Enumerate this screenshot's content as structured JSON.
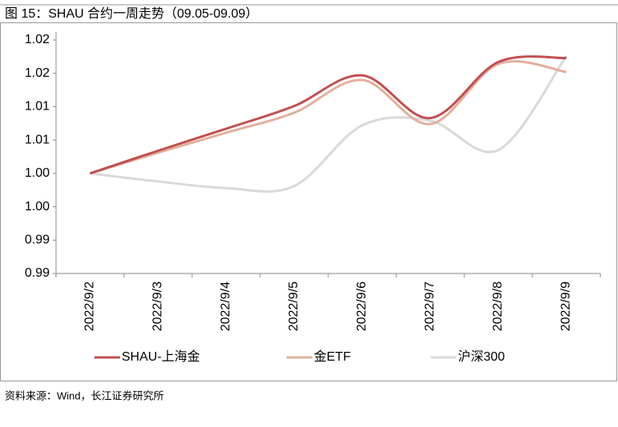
{
  "chart_data": {
    "type": "line",
    "title": "图 15：SHAU 合约一周走势（09.05-09.09）",
    "source": "资料来源：Wind，长江证券研究所",
    "categories": [
      "2022/9/2",
      "2022/9/3",
      "2022/9/4",
      "2022/9/5",
      "2022/9/6",
      "2022/9/7",
      "2022/9/8",
      "2022/9/9"
    ],
    "series": [
      {
        "name": "SHAU-上海金",
        "color": "#c0504f",
        "values": [
          1.0,
          1.0034,
          1.0067,
          1.0101,
          1.0147,
          1.0083,
          1.0167,
          1.0173
        ]
      },
      {
        "name": "金ETF",
        "color": "#e2b09c",
        "values": [
          1.0,
          1.0031,
          1.0061,
          1.0091,
          1.014,
          1.0074,
          1.0164,
          1.0152
        ]
      },
      {
        "name": "沪深300",
        "color": "#d9d9d9",
        "values": [
          1.0,
          0.9988,
          0.9978,
          0.9981,
          1.0072,
          1.0079,
          1.0035,
          1.0176
        ]
      }
    ],
    "ylim": [
      0.985,
      1.02
    ],
    "yticks": [
      {
        "value": 0.985,
        "label": "0.99"
      },
      {
        "value": 0.99,
        "label": "0.99"
      },
      {
        "value": 0.995,
        "label": "1.00"
      },
      {
        "value": 1.0,
        "label": "1.00"
      },
      {
        "value": 1.005,
        "label": "1.01"
      },
      {
        "value": 1.01,
        "label": "1.01"
      },
      {
        "value": 1.015,
        "label": "1.02"
      },
      {
        "value": 1.02,
        "label": "1.02"
      }
    ],
    "legend": "bottom"
  }
}
